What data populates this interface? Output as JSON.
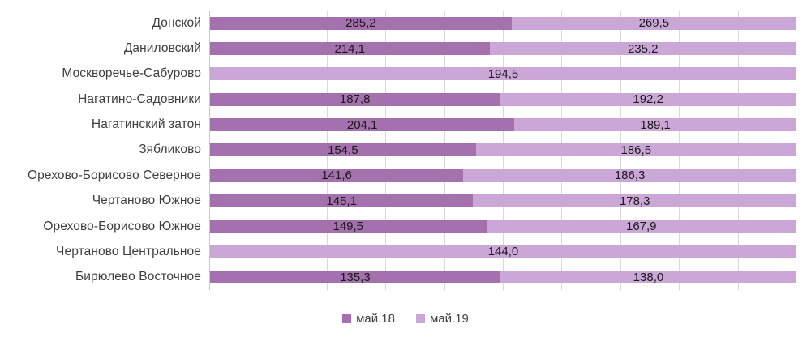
{
  "chart_data": {
    "type": "bar",
    "orientation": "horizontal",
    "stacking": "percent",
    "title": "",
    "xlabel": "",
    "ylabel": "",
    "categories": [
      "Донской",
      "Даниловский",
      "Москворечье-Сабурово",
      "Нагатино-Садовники",
      "Нагатинский затон",
      "Зябликово",
      "Орехово-Борисово Северное",
      "Чертаново Южное",
      "Орехово-Борисово Южное",
      "Чертаново Центральное",
      "Бирюлево Восточное"
    ],
    "series": [
      {
        "name": "май.18",
        "color": "#a470ae",
        "values": [
          285.2,
          214.1,
          null,
          187.8,
          204.1,
          154.5,
          141.6,
          145.1,
          149.5,
          null,
          135.3
        ]
      },
      {
        "name": "май.19",
        "color": "#cba7d7",
        "values": [
          269.5,
          235.2,
          194.5,
          192.2,
          189.1,
          186.5,
          186.3,
          178.3,
          167.9,
          144.0,
          138.0
        ]
      }
    ],
    "data_labels": {
      "shown": true,
      "decimals": 1,
      "decimal_separator": ",",
      "color": "#1a1a1a"
    },
    "gridlines": {
      "axis": "x",
      "ticks_percent": [
        0,
        10,
        20,
        30,
        40,
        50,
        60,
        70,
        80,
        90,
        100
      ],
      "color": "#d9d9d9",
      "axis_line_color": "#c9c9c9"
    },
    "legend": {
      "position": "bottom",
      "entries": [
        "май.18",
        "май.19"
      ]
    }
  }
}
